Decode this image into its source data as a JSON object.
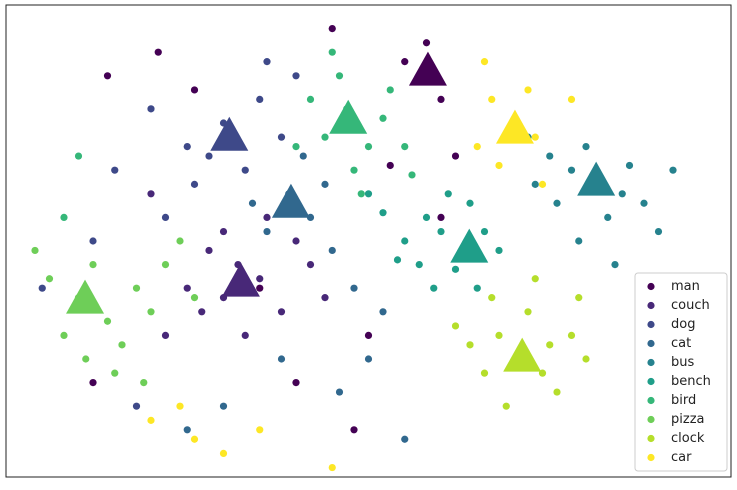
{
  "chart_data": {
    "type": "scatter",
    "xlim": [
      0,
      100
    ],
    "ylim": [
      0,
      100
    ],
    "legend": "lower right",
    "series": [
      {
        "name": "man",
        "color": "#440154",
        "centroid_x": 58.2,
        "centroid_y": 85.8,
        "x": [
          58,
          60,
          55,
          21,
          14,
          50,
          53,
          40,
          12,
          35,
          60,
          62,
          48,
          26,
          45
        ],
        "y": [
          92,
          80,
          88,
          90,
          85,
          30,
          66,
          20,
          20,
          40,
          55,
          68,
          10,
          82,
          95
        ]
      },
      {
        "name": "couch",
        "color": "#482878",
        "centroid_x": 32.4,
        "centroid_y": 41.1,
        "x": [
          32,
          30,
          35,
          28,
          38,
          25,
          40,
          33,
          36,
          22,
          42,
          30,
          27,
          44,
          20
        ],
        "y": [
          45,
          38,
          42,
          48,
          35,
          40,
          50,
          30,
          55,
          30,
          45,
          52,
          35,
          38,
          60
        ]
      },
      {
        "name": "dog",
        "color": "#3e4989",
        "centroid_x": 30.8,
        "centroid_y": 72.0,
        "x": [
          30,
          28,
          25,
          35,
          20,
          33,
          38,
          26,
          15,
          40,
          22,
          5,
          18,
          12,
          36
        ],
        "y": [
          75,
          68,
          70,
          80,
          78,
          65,
          72,
          62,
          65,
          85,
          55,
          40,
          15,
          50,
          88
        ]
      },
      {
        "name": "cat",
        "color": "#31688e",
        "centroid_x": 39.3,
        "centroid_y": 57.8,
        "x": [
          39,
          42,
          36,
          45,
          44,
          48,
          50,
          25,
          38,
          46,
          52,
          34,
          30,
          55,
          41
        ],
        "y": [
          60,
          55,
          52,
          48,
          62,
          40,
          25,
          10,
          25,
          18,
          35,
          58,
          15,
          8,
          68
        ]
      },
      {
        "name": "bus",
        "color": "#26828e",
        "centroid_x": 81.4,
        "centroid_y": 62.5,
        "x": [
          81,
          78,
          85,
          88,
          75,
          83,
          76,
          90,
          80,
          86,
          72,
          92,
          79,
          84,
          73
        ],
        "y": [
          62,
          65,
          60,
          58,
          68,
          55,
          58,
          52,
          70,
          66,
          72,
          65,
          50,
          45,
          62
        ]
      },
      {
        "name": "bench",
        "color": "#1f9e89",
        "centroid_x": 63.9,
        "centroid_y": 48.3,
        "x": [
          60,
          63,
          58,
          55,
          66,
          62,
          57,
          52,
          68,
          61,
          54,
          65,
          50,
          59,
          64
        ],
        "y": [
          52,
          48,
          55,
          50,
          52,
          44,
          45,
          56,
          48,
          60,
          46,
          40,
          60,
          40,
          58
        ]
      },
      {
        "name": "bird",
        "color": "#35b779",
        "centroid_x": 47.2,
        "centroid_y": 75.6,
        "x": [
          47,
          44,
          50,
          42,
          52,
          48,
          53,
          46,
          55,
          40,
          49,
          56,
          10,
          8,
          45
        ],
        "y": [
          78,
          72,
          70,
          80,
          76,
          65,
          82,
          85,
          70,
          70,
          60,
          64,
          68,
          55,
          90
        ]
      },
      {
        "name": "pizza",
        "color": "#6ece58",
        "centroid_x": 10.9,
        "centroid_y": 37.5,
        "x": [
          10,
          14,
          8,
          18,
          12,
          20,
          16,
          6,
          22,
          15,
          24,
          19,
          4,
          11,
          26
        ],
        "y": [
          38,
          33,
          30,
          40,
          45,
          35,
          28,
          42,
          45,
          22,
          50,
          20,
          48,
          25,
          38
        ]
      },
      {
        "name": "clock",
        "color": "#b5de2b",
        "centroid_x": 71.2,
        "centroid_y": 25.2,
        "x": [
          71,
          68,
          74,
          66,
          78,
          72,
          64,
          76,
          80,
          69,
          62,
          79,
          73,
          67,
          75
        ],
        "y": [
          25,
          30,
          22,
          22,
          30,
          35,
          28,
          18,
          25,
          15,
          32,
          38,
          42,
          38,
          28
        ]
      },
      {
        "name": "car",
        "color": "#fde725",
        "centroid_x": 70.2,
        "centroid_y": 73.5,
        "x": [
          70,
          67,
          73,
          65,
          72,
          68,
          66,
          74,
          26,
          30,
          35,
          20,
          45,
          24,
          78
        ],
        "y": [
          75,
          80,
          72,
          70,
          82,
          66,
          88,
          62,
          8,
          5,
          10,
          12,
          2,
          15,
          80
        ]
      }
    ]
  }
}
